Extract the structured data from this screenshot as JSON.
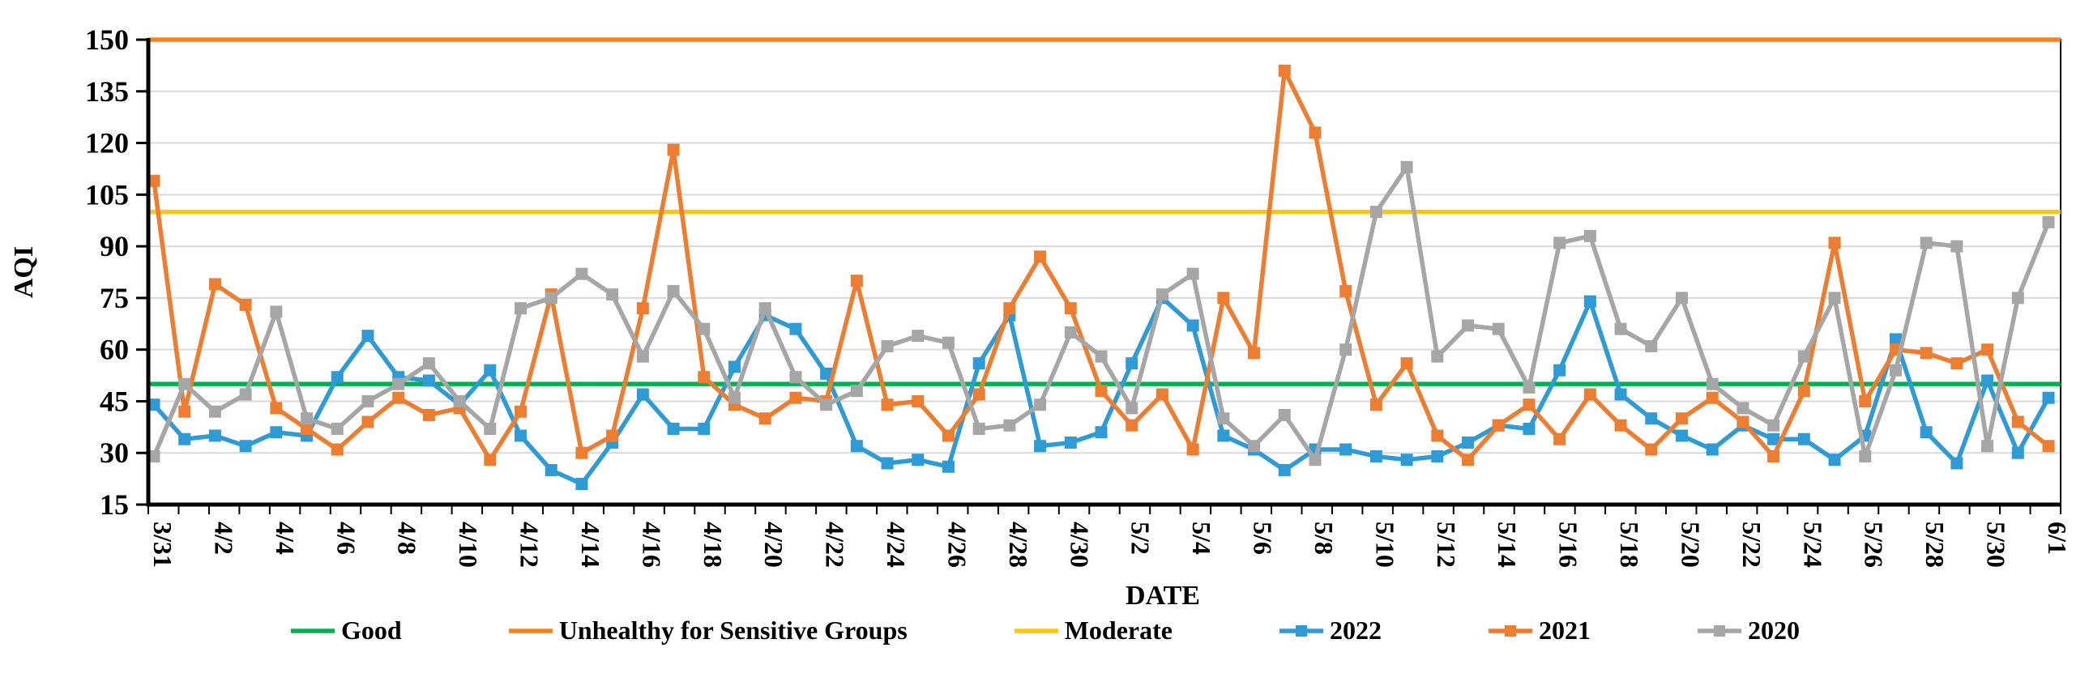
{
  "chart_data": {
    "type": "line",
    "title": "",
    "xlabel": "DATE",
    "ylabel": "AQI",
    "ylim": [
      15,
      150
    ],
    "yticks": [
      15,
      30,
      45,
      60,
      75,
      90,
      105,
      120,
      135,
      150
    ],
    "grid": true,
    "legend_position": "bottom",
    "x_label_every": 2,
    "x_categories": [
      "3/31",
      "4/1",
      "4/2",
      "4/3",
      "4/4",
      "4/5",
      "4/6",
      "4/7",
      "4/8",
      "4/9",
      "4/10",
      "4/11",
      "4/12",
      "4/13",
      "4/14",
      "4/15",
      "4/16",
      "4/17",
      "4/18",
      "4/19",
      "4/20",
      "4/21",
      "4/22",
      "4/23",
      "4/24",
      "4/25",
      "4/26",
      "4/27",
      "4/28",
      "4/29",
      "4/30",
      "5/1",
      "5/2",
      "5/3",
      "5/4",
      "5/5",
      "5/6",
      "5/7",
      "5/8",
      "5/9",
      "5/10",
      "5/11",
      "5/12",
      "5/13",
      "5/14",
      "5/15",
      "5/16",
      "5/17",
      "5/18",
      "5/19",
      "5/20",
      "5/21",
      "5/22",
      "5/23",
      "5/24",
      "5/25",
      "5/26",
      "5/27",
      "5/28",
      "5/29",
      "5/30",
      "5/31",
      "6/1"
    ],
    "reference_lines": [
      {
        "name": "Good",
        "value": 50,
        "color": "#00B050"
      },
      {
        "name": "Unhealthy for Sensitive Groups",
        "value": 150,
        "color": "#F58220"
      },
      {
        "name": "Moderate",
        "value": 100,
        "color": "#FFC60B"
      }
    ],
    "series": [
      {
        "name": "2022",
        "color": "#2E9AD6",
        "values": [
          44,
          34,
          35,
          32,
          36,
          35,
          52,
          64,
          52,
          51,
          44,
          54,
          35,
          25,
          21,
          33,
          47,
          37,
          37,
          55,
          70,
          66,
          53,
          32,
          27,
          28,
          26,
          56,
          70,
          32,
          33,
          36,
          56,
          75,
          67,
          35,
          31,
          25,
          31,
          31,
          29,
          28,
          29,
          33,
          38,
          37,
          54,
          74,
          47,
          40,
          35,
          31,
          38,
          34,
          34,
          28,
          35,
          63,
          36,
          27,
          51,
          30,
          46
        ]
      },
      {
        "name": "2021",
        "color": "#ED7D31",
        "values": [
          109,
          42,
          79,
          73,
          43,
          37,
          31,
          39,
          46,
          41,
          43,
          28,
          42,
          76,
          30,
          35,
          72,
          118,
          52,
          44,
          40,
          46,
          45,
          80,
          44,
          45,
          35,
          47,
          72,
          87,
          72,
          48,
          38,
          47,
          31,
          75,
          59,
          141,
          123,
          77,
          44,
          56,
          35,
          28,
          38,
          44,
          34,
          47,
          38,
          31,
          40,
          46,
          39,
          29,
          48,
          91,
          45,
          60,
          59,
          56,
          60,
          39,
          32
        ]
      },
      {
        "name": "2020",
        "color": "#A6A6A6",
        "values": [
          29,
          50,
          42,
          47,
          71,
          40,
          37,
          45,
          50,
          56,
          45,
          37,
          72,
          75,
          82,
          76,
          58,
          77,
          66,
          46,
          72,
          52,
          44,
          48,
          61,
          64,
          62,
          37,
          38,
          44,
          65,
          58,
          43,
          76,
          82,
          40,
          32,
          41,
          28,
          60,
          100,
          113,
          58,
          67,
          66,
          49,
          91,
          93,
          66,
          61,
          75,
          50,
          43,
          38,
          58,
          75,
          29,
          54,
          91,
          90,
          32,
          75,
          97
        ]
      }
    ],
    "legend_items": [
      {
        "label": "Good",
        "color": "#00B050",
        "marker": false
      },
      {
        "label": "Unhealthy for Sensitive Groups",
        "color": "#F58220",
        "marker": false
      },
      {
        "label": "Moderate",
        "color": "#FFC60B",
        "marker": false
      },
      {
        "label": "2022",
        "color": "#2E9AD6",
        "marker": true
      },
      {
        "label": "2021",
        "color": "#ED7D31",
        "marker": true
      },
      {
        "label": "2020",
        "color": "#A6A6A6",
        "marker": true
      }
    ],
    "colors": {
      "grid": "#D9D9D9",
      "axis": "#000000",
      "text": "#000000",
      "background": "#FFFFFF"
    }
  }
}
